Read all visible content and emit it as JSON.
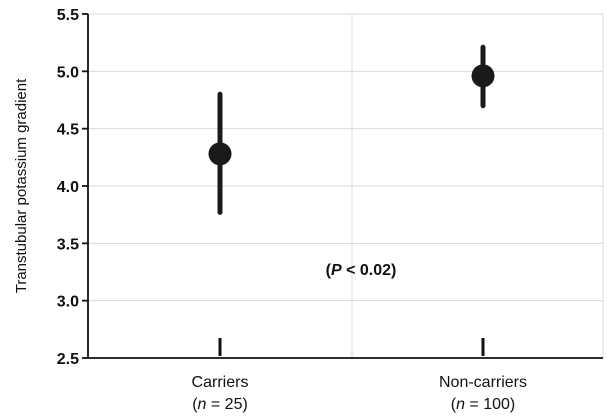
{
  "chart_data": {
    "type": "scatter",
    "ylabel": "Transtubular potassium gradient",
    "ylim": [
      2.5,
      5.5
    ],
    "yticks": [
      "2.5",
      "3.0",
      "3.5",
      "4.0",
      "4.5",
      "5.0",
      "5.5"
    ],
    "grid": true,
    "categories": [
      {
        "name": "Carriers",
        "n_label": "n",
        "n_value": "= 25)"
      },
      {
        "name": "Non-carriers",
        "n_label": "n",
        "n_value": "= 100)"
      }
    ],
    "points": [
      {
        "category": "Carriers",
        "value": 4.28,
        "low": 3.77,
        "high": 4.8
      },
      {
        "category": "Non-carriers",
        "value": 4.96,
        "low": 4.7,
        "high": 5.21
      }
    ],
    "annotation": {
      "italic": "P",
      "text": " < 0.02)"
    },
    "colors": {
      "marker": "#1a1a1a",
      "grid": "#d9d9d9",
      "axis": "#111111"
    }
  }
}
